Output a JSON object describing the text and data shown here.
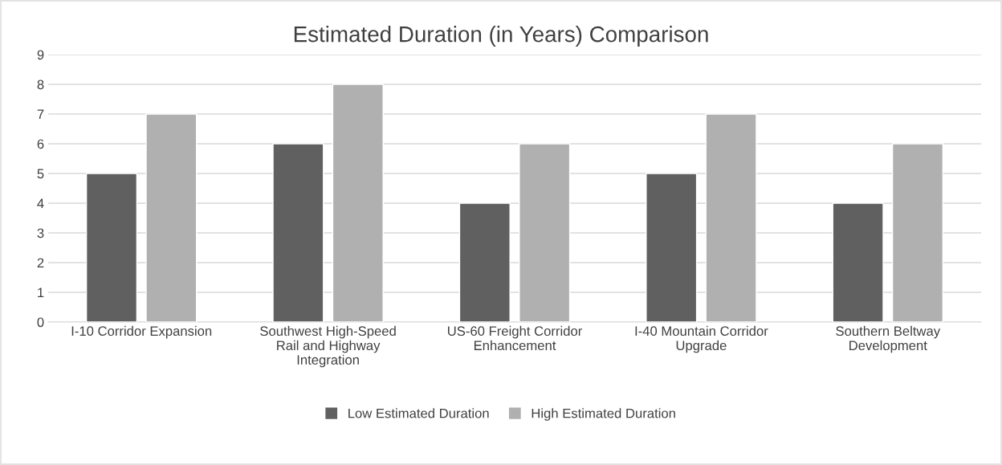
{
  "chart_data": {
    "type": "bar",
    "title": "Estimated Duration (in Years) Comparison",
    "categories": [
      "I-10 Corridor Expansion",
      "Southwest High-Speed Rail and Highway Integration",
      "US-60 Freight Corridor Enhancement",
      "I-40 Mountain Corridor Upgrade",
      "Southern Beltway Development"
    ],
    "series": [
      {
        "name": "Low Estimated Duration",
        "color": "#606060",
        "values": [
          5,
          6,
          4,
          5,
          4
        ]
      },
      {
        "name": "High Estimated Duration",
        "color": "#b0b0b0",
        "values": [
          7,
          8,
          6,
          7,
          6
        ]
      }
    ],
    "ylim": [
      0,
      9
    ],
    "yticks": [
      0,
      1,
      2,
      3,
      4,
      5,
      6,
      7,
      8,
      9
    ],
    "grid": "y",
    "legend": "bottom"
  }
}
